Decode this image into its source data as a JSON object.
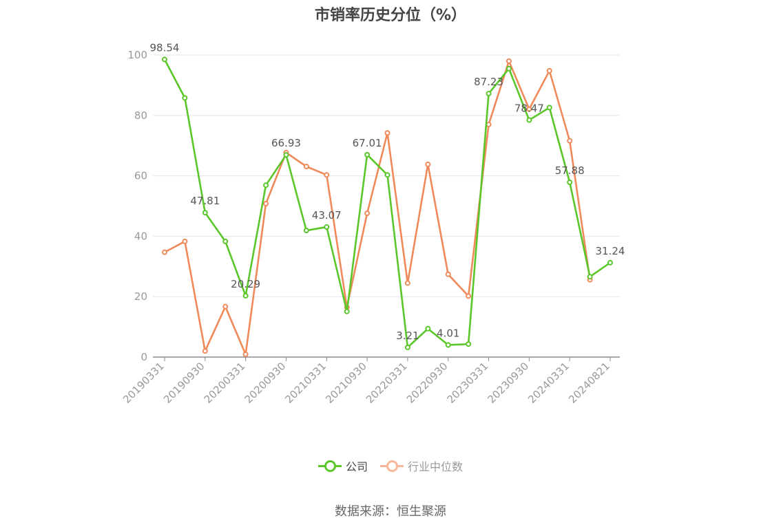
{
  "chart_data": {
    "type": "line",
    "title": "市销率历史分位（%）",
    "ylim": [
      0,
      100
    ],
    "yticks": [
      0,
      20,
      40,
      60,
      80,
      100
    ],
    "x_tick_labels": [
      "20190331",
      "20190930",
      "20200331",
      "20200930",
      "20210331",
      "20210930",
      "20220331",
      "20220930",
      "20230331",
      "20230930",
      "20240331",
      "20240821"
    ],
    "x": [
      "20190331",
      "20190630",
      "20190930",
      "20191231",
      "20200331",
      "20200630",
      "20200930",
      "20201231",
      "20210331",
      "20210630",
      "20210930",
      "20211231",
      "20220331",
      "20220630",
      "20220930",
      "20221231",
      "20230331",
      "20230630",
      "20230930",
      "20231231",
      "20240331",
      "20240630",
      "20240821"
    ],
    "series": [
      {
        "name": "公司",
        "color": "#5ac629",
        "values": [
          98.54,
          85.8,
          47.81,
          38.3,
          20.29,
          56.9,
          66.93,
          41.9,
          43.07,
          15.1,
          67.01,
          60.3,
          3.21,
          9.4,
          4.01,
          4.3,
          87.23,
          95.5,
          78.47,
          82.6,
          57.88,
          26.6,
          31.24
        ],
        "labeled_points": [
          {
            "index": 0,
            "text": "98.54"
          },
          {
            "index": 2,
            "text": "47.81"
          },
          {
            "index": 4,
            "text": "20.29"
          },
          {
            "index": 6,
            "text": "66.93"
          },
          {
            "index": 8,
            "text": "43.07"
          },
          {
            "index": 10,
            "text": "67.01"
          },
          {
            "index": 12,
            "text": "3.21"
          },
          {
            "index": 14,
            "text": "4.01"
          },
          {
            "index": 16,
            "text": "87.23"
          },
          {
            "index": 18,
            "text": "78.47"
          },
          {
            "index": 20,
            "text": "57.88"
          },
          {
            "index": 22,
            "text": "31.24"
          }
        ]
      },
      {
        "name": "行业中位数",
        "color": "#f0895a",
        "values": [
          34.7,
          38.3,
          2.0,
          16.7,
          0.9,
          50.8,
          67.7,
          63.1,
          60.3,
          16.5,
          47.6,
          74.2,
          24.5,
          63.8,
          27.4,
          20.2,
          77.0,
          98.0,
          82.1,
          94.8,
          71.6,
          25.6,
          null
        ]
      }
    ],
    "legend": [
      {
        "label": "公司",
        "color": "#5ac629",
        "active": true
      },
      {
        "label": "行业中位数",
        "color": "#f9b79a",
        "active": false
      }
    ],
    "legend_position": "bottom",
    "grid": true,
    "source": "数据来源：恒生聚源"
  }
}
